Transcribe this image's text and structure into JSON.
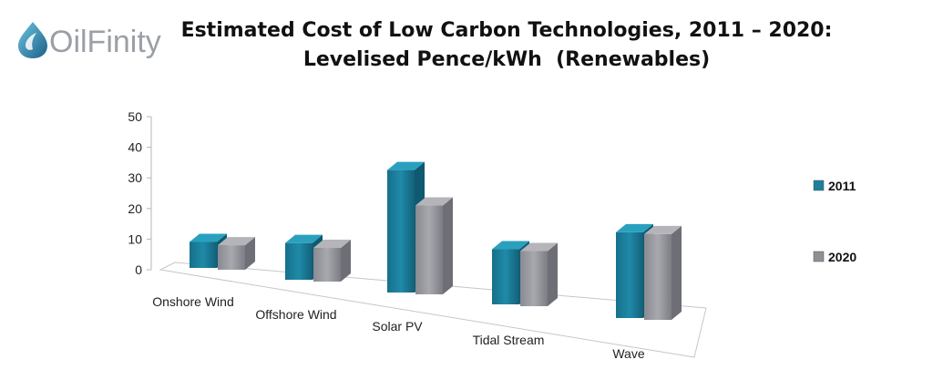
{
  "logo": {
    "text": "OilFinity"
  },
  "header": {
    "title_line1": "Estimated Cost of Low Carbon Technologies, 2011 – 2020:",
    "title_line2": "Levelised Pence/kWh  (Renewables)"
  },
  "chart_data": {
    "type": "bar",
    "style": "3d-clustered-column",
    "title": "Estimated Cost of Low Carbon Technologies, 2011 – 2020: Levelised Pence/kWh  (Renewables)",
    "categories": [
      "Onshore Wind",
      "Offshore Wind",
      "Solar PV",
      "Tidal Stream",
      "Wave"
    ],
    "series": [
      {
        "name": "2011",
        "color": "#1d7f9b",
        "values": [
          8.5,
          12,
          40,
          18,
          28
        ]
      },
      {
        "name": "2020",
        "color": "#8f8f96",
        "values": [
          8,
          11,
          29,
          18,
          28
        ]
      }
    ],
    "yticks": [
      0,
      10,
      20,
      30,
      40,
      50
    ],
    "ylim": [
      0,
      50
    ],
    "xlabel": "",
    "ylabel": "",
    "grid": false,
    "legend_position": "right"
  }
}
